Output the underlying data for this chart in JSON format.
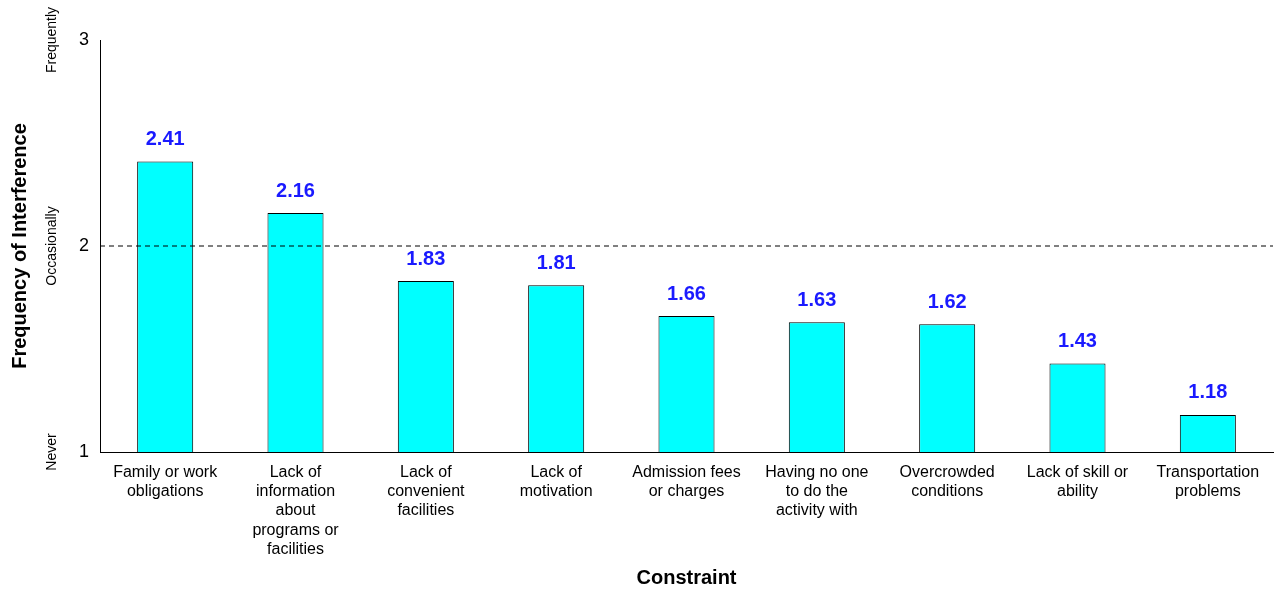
{
  "chart_data": {
    "type": "bar",
    "categories": [
      "Family or work obligations",
      "Lack of information about programs or facilities",
      "Lack of convenient facilities",
      "Lack of motivation",
      "Admission fees or charges",
      "Having no one to do the activity with",
      "Overcrowded conditions",
      "Lack of skill or ability",
      "Transportation problems"
    ],
    "values": [
      2.41,
      2.16,
      1.83,
      1.81,
      1.66,
      1.63,
      1.62,
      1.43,
      1.18
    ],
    "color": "#00ffff",
    "ylim": [
      1,
      3
    ],
    "yticks": [
      1,
      2,
      3
    ],
    "xlabel": "Constraint",
    "ylabel": "Frequency of Interference",
    "data_labels": true,
    "ref_lines": [
      {
        "axis": "y",
        "value": 2,
        "color": "#000000",
        "line_style": "dashed"
      }
    ],
    "annotations": [
      "Never",
      "Occasionally",
      "Frequently"
    ],
    "grid": false,
    "legend": false
  }
}
